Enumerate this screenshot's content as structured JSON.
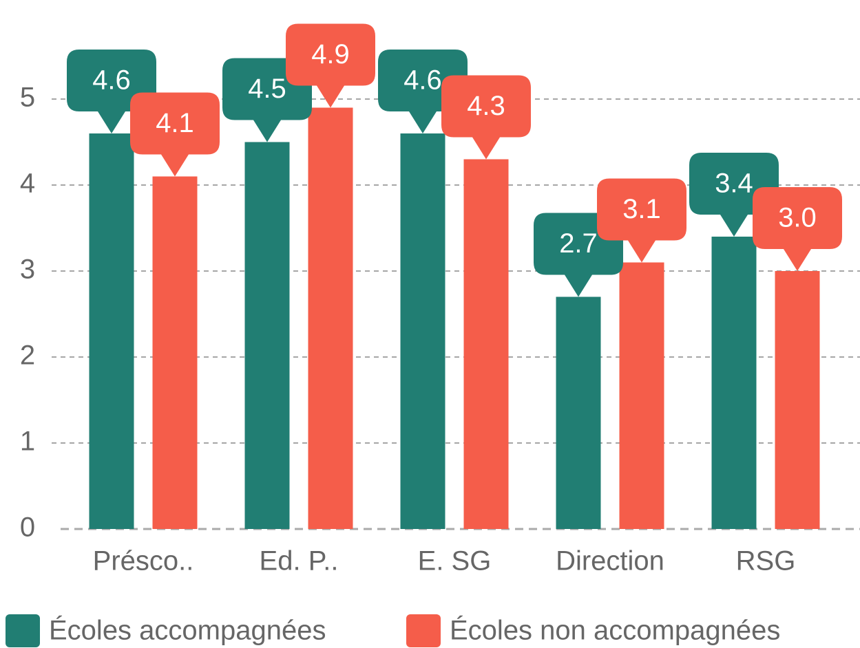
{
  "chart_data": {
    "type": "bar",
    "categories": [
      "Présco..",
      "Ed. P..",
      "E. SG",
      "Direction",
      "RSG"
    ],
    "series": [
      {
        "name": "Écoles accompagnées",
        "color": "#217e73",
        "values": [
          4.6,
          4.5,
          4.6,
          2.7,
          3.4
        ],
        "value_labels": [
          "4.6",
          "4.5",
          "4.6",
          "2.7",
          "3.4"
        ]
      },
      {
        "name": "Écoles non accompagnées",
        "color": "#f55d4a",
        "values": [
          4.1,
          4.9,
          4.3,
          3.1,
          3
        ],
        "value_labels": [
          "4.1",
          "4.9",
          "4.3",
          "3.1",
          "3.0"
        ]
      }
    ],
    "ylim": [
      0,
      5
    ],
    "yticks": [
      0,
      1,
      2,
      3,
      4,
      5
    ],
    "grid": true,
    "legend": "bottom"
  }
}
